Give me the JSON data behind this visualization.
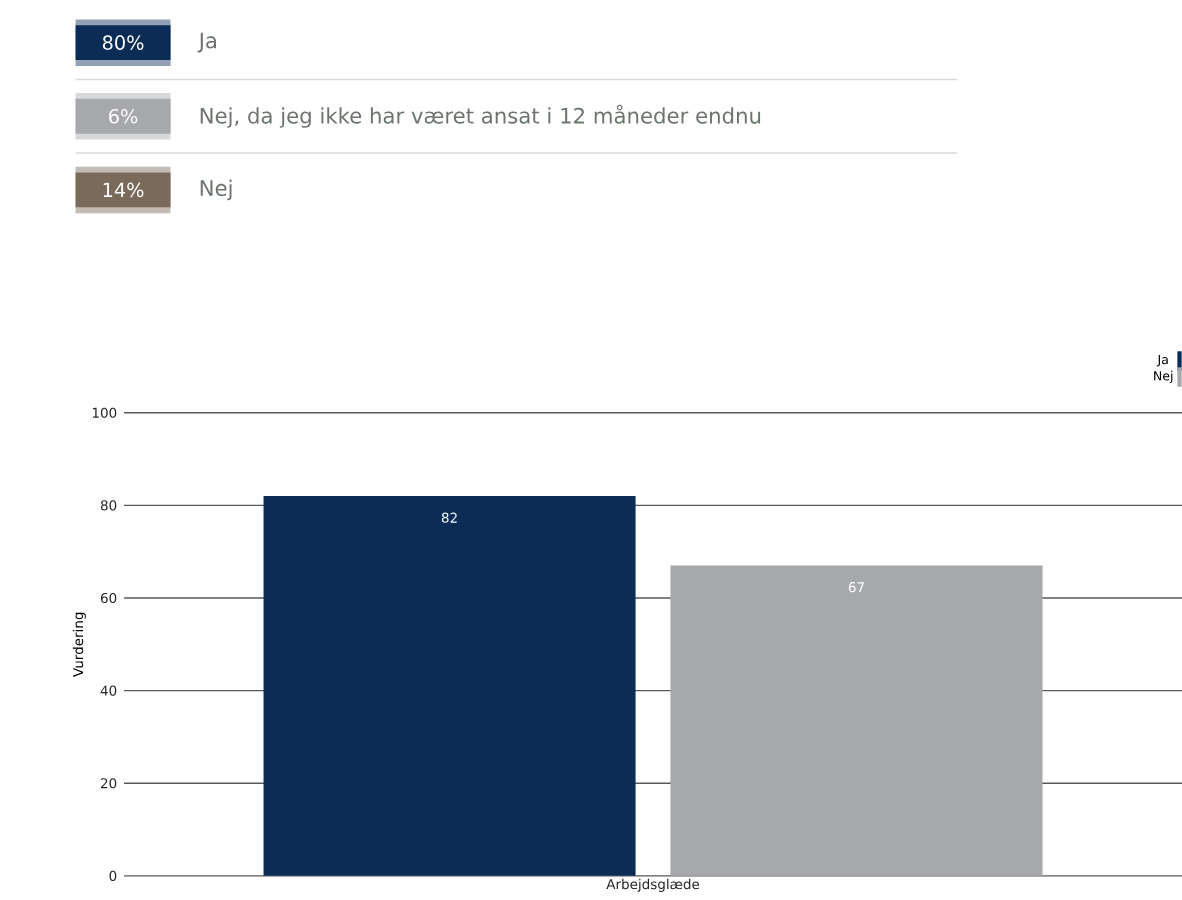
{
  "chart_data": [
    {
      "type": "other",
      "categories": [
        "Ja",
        "Nej, da jeg ikke har været ansat i 12 måneder endnu",
        "Nej"
      ],
      "value_labels": [
        "80%",
        "6%",
        "14%"
      ],
      "colors": [
        "#0b2d55",
        "#a7a8ab",
        "#7a6a5a"
      ]
    },
    {
      "type": "bar",
      "categories": [
        "Arbejdsglæde"
      ],
      "series": [
        {
          "name": "Ja",
          "color": "#0b2d55",
          "values": [
            82
          ]
        },
        {
          "name": "Nej",
          "color": "#a7a8ab",
          "values": [
            67
          ]
        }
      ],
      "ylabel": "Vurdering",
      "ylim": [
        0,
        100
      ],
      "yticks": [
        0,
        20,
        40,
        60,
        80,
        100
      ],
      "grid": "y",
      "legend": "top right",
      "data_labels": true
    }
  ]
}
